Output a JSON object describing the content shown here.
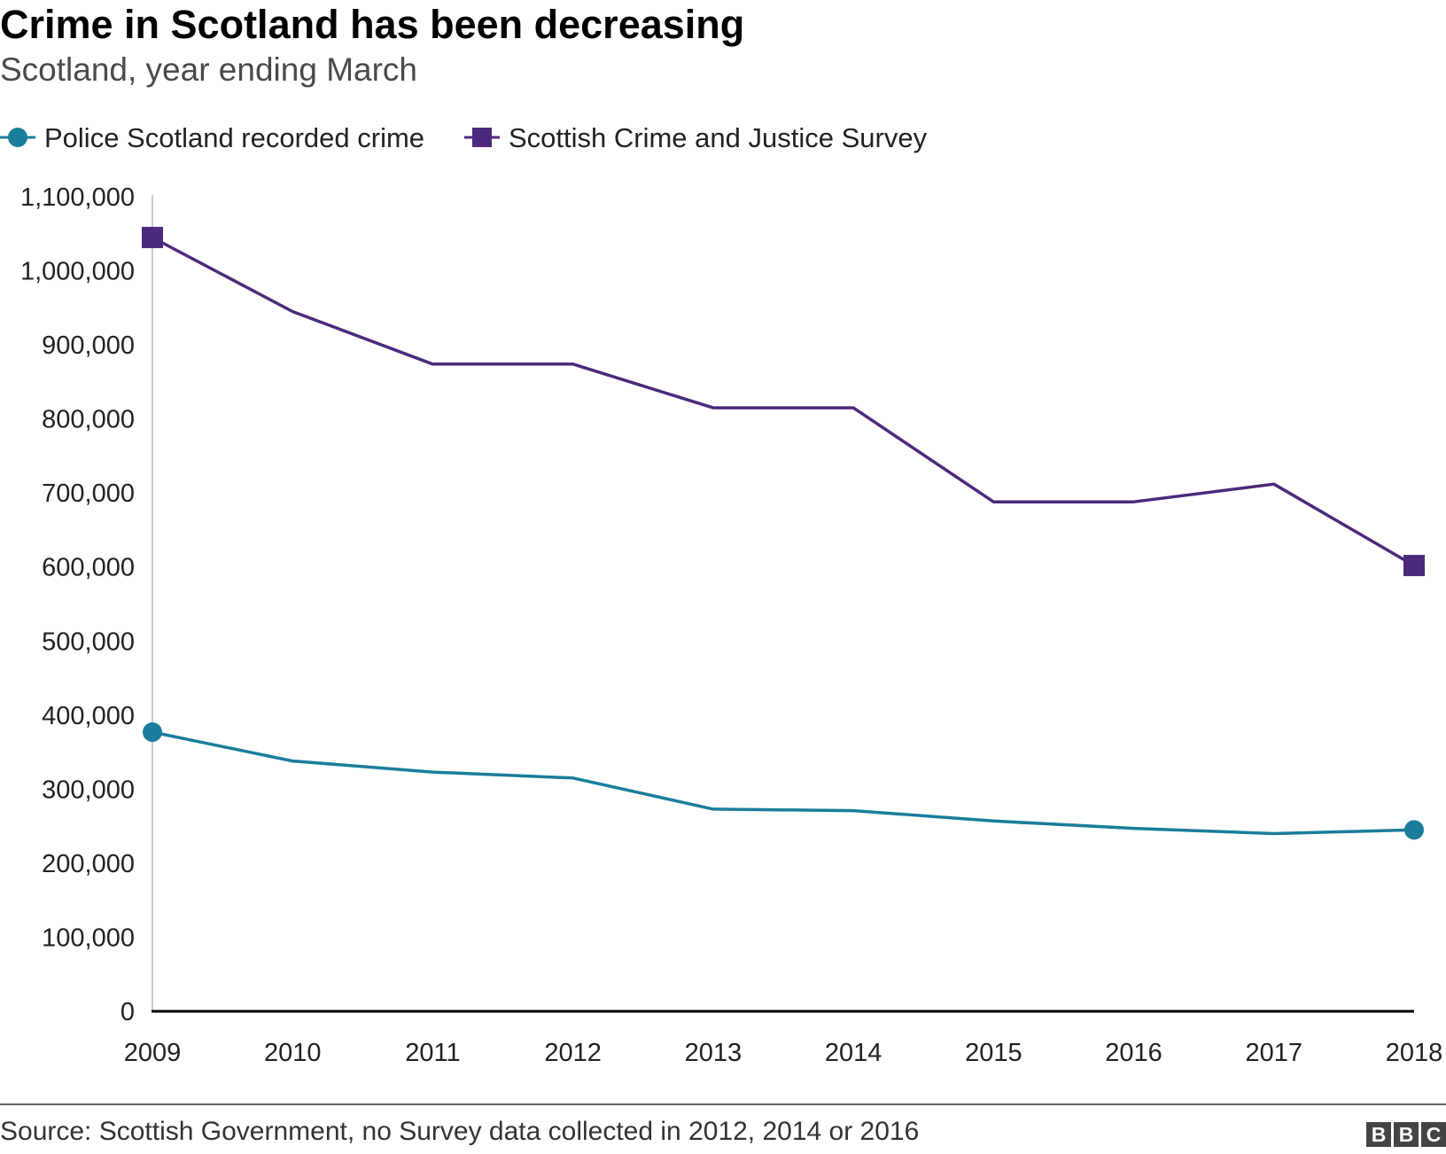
{
  "chart_data": {
    "type": "line",
    "title": "Crime in Scotland has been decreasing",
    "subtitle": "Scotland, year ending March",
    "xlabel": "",
    "ylabel": "",
    "categories": [
      "2009",
      "2010",
      "2011",
      "2012",
      "2013",
      "2014",
      "2015",
      "2016",
      "2017",
      "2018"
    ],
    "ylim": [
      0,
      1100000
    ],
    "y_ticks": [
      0,
      100000,
      200000,
      300000,
      400000,
      500000,
      600000,
      700000,
      800000,
      900000,
      1000000,
      1100000
    ],
    "y_tick_labels": [
      "0",
      "100,000",
      "200,000",
      "300,000",
      "400,000",
      "500,000",
      "600,000",
      "700,000",
      "800,000",
      "900,000",
      "1,000,000",
      "1,100,000"
    ],
    "grid": false,
    "legend_position": "top-left",
    "series": [
      {
        "name": "Police Scotland recorded crime",
        "color": "#1a7d9c",
        "marker": "circle",
        "values": [
          377000,
          338000,
          323000,
          315000,
          273000,
          271000,
          257000,
          247000,
          240000,
          245000
        ]
      },
      {
        "name": "Scottish Crime and Justice Survey",
        "color": "#4b2a7b",
        "marker": "square",
        "values": [
          1045000,
          945000,
          874000,
          874000,
          815000,
          815000,
          688000,
          688000,
          712000,
          602000
        ]
      }
    ],
    "source": "Source: Scottish Government, no Survey data collected in 2012, 2014 or 2016"
  },
  "logo_letters": [
    "B",
    "B",
    "C"
  ]
}
